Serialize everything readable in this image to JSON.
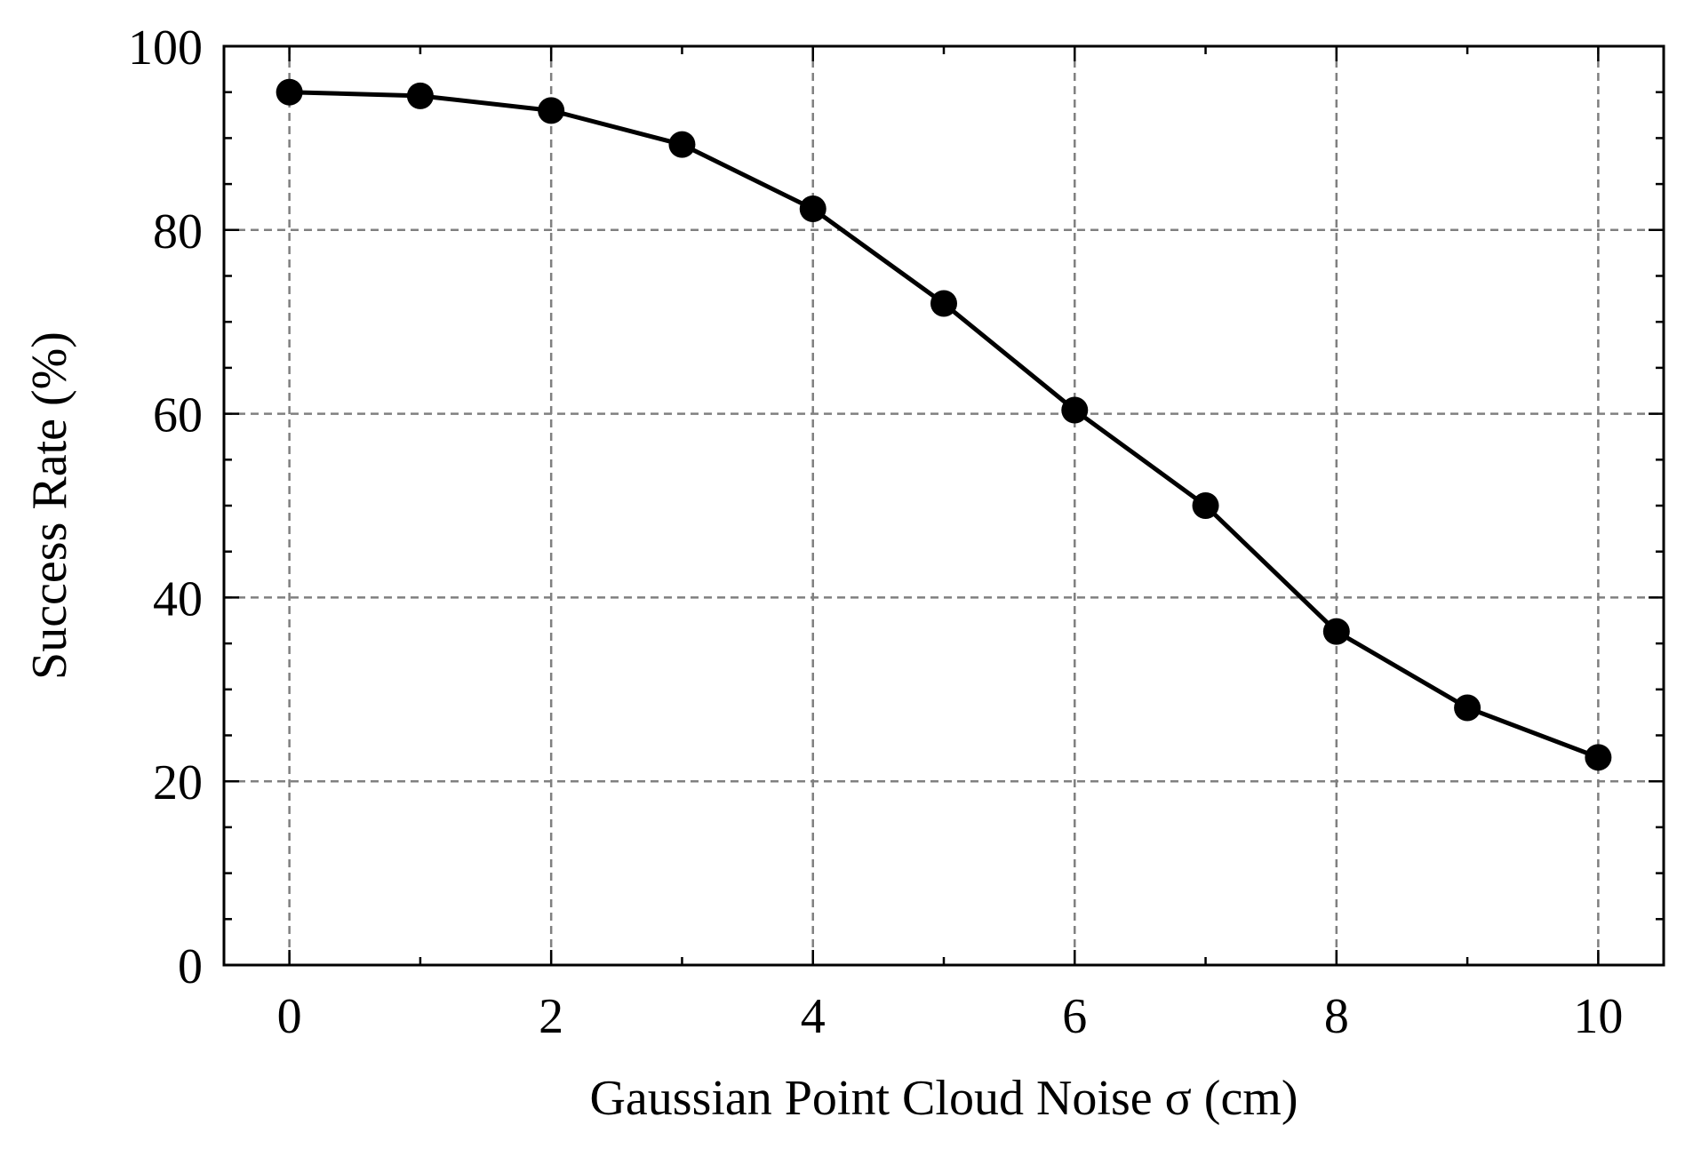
{
  "chart_data": {
    "type": "line",
    "title": "",
    "xlabel": "Gaussian Point Cloud Noise σ (cm)",
    "ylabel": "Success Rate (%)",
    "xlim": [
      -0.5,
      10.5
    ],
    "ylim": [
      0,
      100
    ],
    "x_ticks": [
      0,
      2,
      4,
      6,
      8,
      10
    ],
    "x_minor_ticks": [
      1,
      3,
      5,
      7,
      9
    ],
    "y_ticks": [
      0,
      20,
      40,
      60,
      80,
      100
    ],
    "y_minor_ticks": [
      5,
      10,
      15,
      25,
      30,
      35,
      45,
      50,
      55,
      65,
      70,
      75,
      85,
      90,
      95
    ],
    "grid": true,
    "legend": "none",
    "series": [
      {
        "x": [
          0,
          1,
          2,
          3,
          4,
          5,
          6,
          7,
          8,
          9,
          10
        ],
        "values": [
          95.0,
          94.6,
          93.0,
          89.3,
          82.3,
          72.0,
          60.4,
          50.0,
          36.3,
          28.0,
          22.6
        ],
        "color": "#000000",
        "marker": "circle"
      }
    ],
    "colors": {
      "line": "#000000",
      "grid": "#808080",
      "axes": "#000000"
    }
  }
}
